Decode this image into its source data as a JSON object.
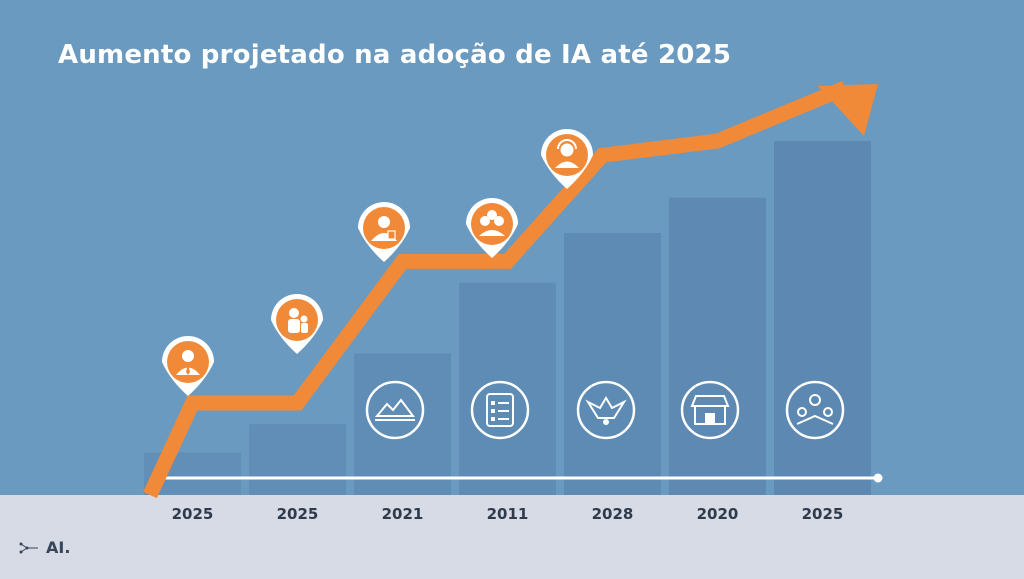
{
  "title": "Aumento projetado na adoção de IA até 2025",
  "chart_data": {
    "type": "bar",
    "title": "Aumento projetado na adoção de IA até 2025",
    "categories": [
      "2025",
      "2025",
      "2021",
      "2011",
      "2028",
      "2020",
      "2025"
    ],
    "values": [
      12,
      20,
      40,
      60,
      74,
      84,
      100
    ],
    "trend_line": [
      0,
      26,
      26,
      66,
      66,
      96,
      100,
      115
    ],
    "ylim": [
      0,
      115
    ],
    "xlabel": "",
    "ylabel": "",
    "grid": false,
    "legend": "none",
    "colors": {
      "background": "#6b9ac0",
      "bar": "#5a86b0",
      "arrow": "#f08a38",
      "pin": "#f08a38",
      "footer": "#d6dbe5",
      "tick_text": "#2f3b4d"
    },
    "upper_icons": [
      "businessman-icon",
      "person-icon",
      "doctor-icon",
      "team-icon",
      "support-agent-icon"
    ],
    "lower_icons": [
      "landscape-icon",
      "checklist-icon",
      "emblem-icon",
      "storefront-icon",
      "network-icon"
    ]
  },
  "logo": {
    "text": "AI."
  }
}
